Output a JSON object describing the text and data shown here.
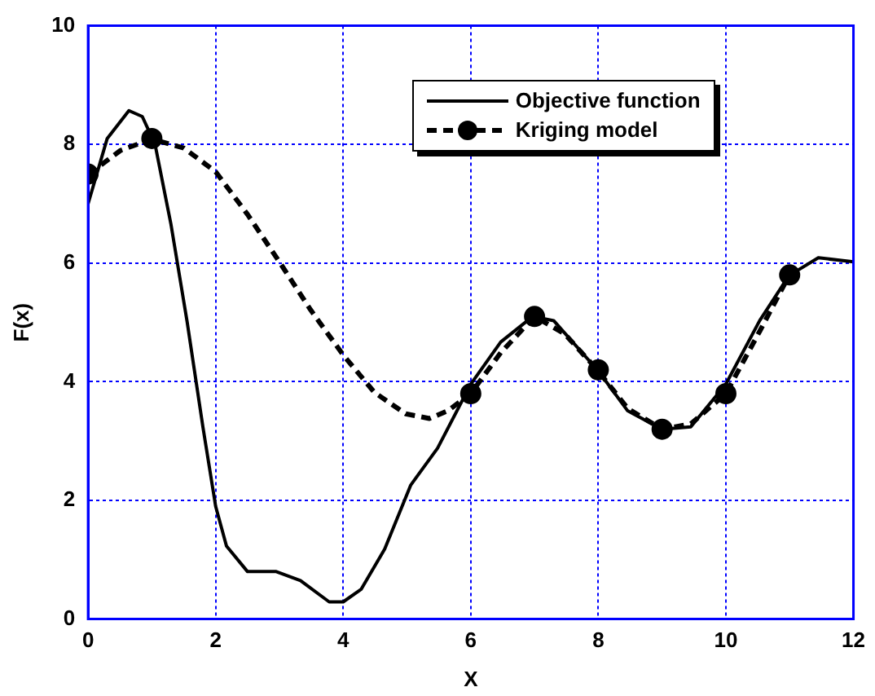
{
  "chart_data": {
    "type": "line",
    "xlabel": "X",
    "ylabel": "F(x)",
    "xlim": [
      0,
      12
    ],
    "xticks": [
      0,
      2,
      4,
      6,
      8,
      10,
      12
    ],
    "ylim": [
      0,
      10
    ],
    "yticks": [
      0,
      2,
      4,
      6,
      8,
      10
    ],
    "grid": true,
    "legend": "top right",
    "series": [
      {
        "name": "Objective function",
        "color": "#000000",
        "line_style": "solid",
        "marker": "none",
        "x": [
          0,
          0.3,
          0.64,
          0.85,
          1.05,
          1.3,
          1.55,
          1.8,
          2.0,
          2.17,
          2.5,
          2.95,
          3.33,
          3.78,
          4.0,
          4.28,
          4.65,
          5.06,
          5.48,
          6.0,
          6.47,
          6.97,
          7.3,
          8.0,
          8.46,
          9.0,
          9.45,
          10.0,
          10.53,
          10.99,
          11.45,
          12
        ],
        "values": [
          7.0,
          8.1,
          8.57,
          8.47,
          8.0,
          6.65,
          5.03,
          3.24,
          1.9,
          1.23,
          0.8,
          0.8,
          0.65,
          0.29,
          0.29,
          0.5,
          1.18,
          2.26,
          2.88,
          3.96,
          4.67,
          5.1,
          5.03,
          4.18,
          3.51,
          3.2,
          3.24,
          3.96,
          5.03,
          5.79,
          6.09,
          6.02
        ]
      },
      {
        "name": "Kriging model",
        "color": "#000000",
        "line_style": "dashed",
        "marker": "none",
        "x": [
          0,
          0.51,
          1.0,
          1.5,
          2.0,
          2.5,
          3.0,
          3.49,
          4.0,
          4.49,
          4.98,
          5.35,
          5.64,
          6.0,
          6.47,
          7.0,
          7.47,
          8.0,
          8.46,
          9.0,
          9.45,
          10.0,
          10.53,
          10.99
        ],
        "values": [
          7.49,
          7.9,
          8.09,
          7.94,
          7.54,
          6.82,
          6.02,
          5.21,
          4.45,
          3.82,
          3.46,
          3.38,
          3.51,
          3.8,
          4.49,
          5.1,
          4.81,
          4.18,
          3.55,
          3.2,
          3.29,
          3.8,
          4.85,
          5.79
        ]
      },
      {
        "type": "scatter",
        "color": "#000000",
        "marker": "circle",
        "x": [
          0,
          1,
          6,
          7,
          8,
          9,
          10,
          11
        ],
        "values": [
          7.5,
          8.1,
          3.8,
          5.1,
          4.2,
          3.2,
          3.8,
          5.8
        ]
      }
    ]
  }
}
